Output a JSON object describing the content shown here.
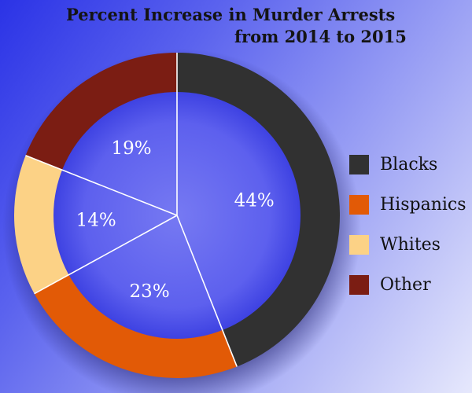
{
  "chart_data": {
    "type": "pie",
    "title": "Percent Increase in Murder Arrests",
    "subtitle": "from 2014 to 2015",
    "categories": [
      "Blacks",
      "Hispanics",
      "Whites",
      "Other"
    ],
    "values": [
      44,
      23,
      14,
      19
    ],
    "labels": [
      "44%",
      "23%",
      "14%",
      "19%"
    ],
    "colors": [
      "#313131",
      "#e25a06",
      "#fcd286",
      "#7b1d13"
    ],
    "legend_position": "right",
    "style": "donut"
  }
}
